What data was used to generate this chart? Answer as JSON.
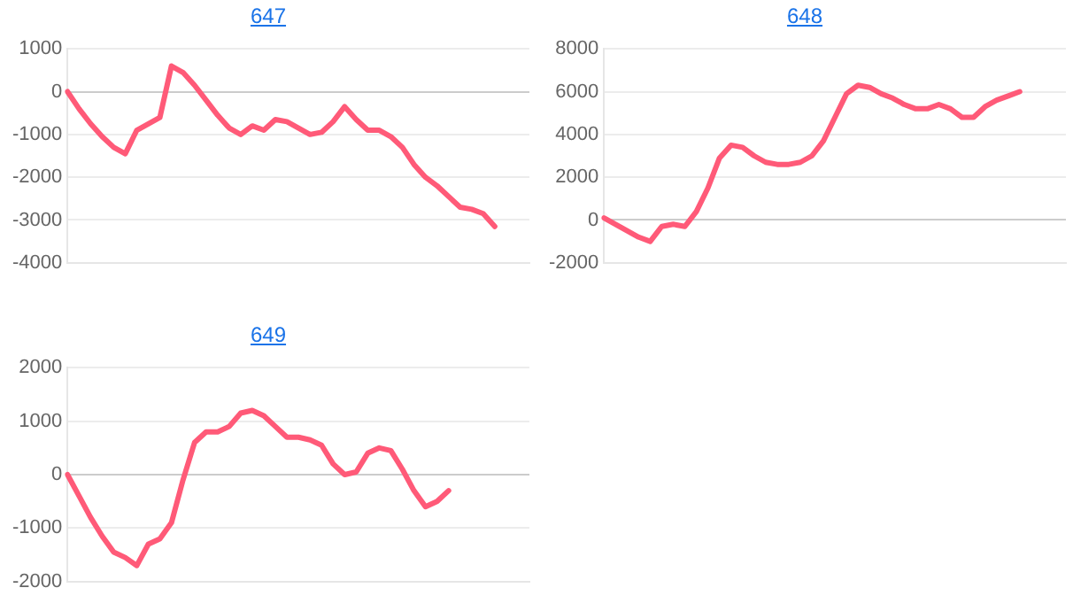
{
  "chart_data": [
    {
      "type": "line",
      "title": "647",
      "categories": [
        null,
        null,
        null,
        null,
        null,
        null,
        null,
        null,
        null,
        null,
        null,
        null,
        null,
        null,
        null,
        null,
        null,
        null,
        null,
        null,
        null,
        null,
        null,
        null,
        null,
        null,
        null,
        null,
        null,
        null,
        null,
        null,
        null,
        null,
        null,
        null,
        null,
        null,
        null,
        null,
        null
      ],
      "series": [
        {
          "color": "#ff5a78",
          "values": [
            0,
            -400,
            -750,
            -1050,
            -1300,
            -1450,
            -900,
            -750,
            -600,
            600,
            450,
            150,
            -200,
            -550,
            -850,
            -1000,
            -800,
            -900,
            -650,
            -700,
            -850,
            -1000,
            -950,
            -700,
            -350,
            -650,
            -900,
            -900,
            -1050,
            -1300,
            -1700,
            -2000,
            -2200,
            -2450,
            -2700,
            -2750,
            -2850,
            -3150,
            null,
            null,
            null
          ]
        }
      ],
      "ylim": [
        -4000,
        1000
      ],
      "yticks": [
        -4000,
        -3000,
        -2000,
        -1000,
        0,
        1000
      ],
      "grid": "y",
      "tick_labels": "y",
      "marker": "none",
      "line_style": "solid"
    },
    {
      "type": "line",
      "title": "648",
      "categories": [
        null,
        null,
        null,
        null,
        null,
        null,
        null,
        null,
        null,
        null,
        null,
        null,
        null,
        null,
        null,
        null,
        null,
        null,
        null,
        null,
        null,
        null,
        null,
        null,
        null,
        null,
        null,
        null,
        null,
        null,
        null,
        null,
        null,
        null,
        null,
        null,
        null,
        null,
        null,
        null,
        null
      ],
      "series": [
        {
          "color": "#ff5a78",
          "values": [
            100,
            -200,
            -500,
            -800,
            -1000,
            -300,
            -200,
            -300,
            400,
            1500,
            2900,
            3500,
            3400,
            3000,
            2700,
            2600,
            2600,
            2700,
            3000,
            3700,
            4800,
            5900,
            6300,
            6200,
            5900,
            5700,
            5400,
            5200,
            5200,
            5400,
            5200,
            4800,
            4800,
            5300,
            5600,
            5800,
            6000,
            null,
            null,
            null,
            null
          ]
        }
      ],
      "ylim": [
        -2000,
        8000
      ],
      "yticks": [
        -2000,
        0,
        2000,
        4000,
        6000,
        8000
      ],
      "grid": "y",
      "tick_labels": "y",
      "marker": "none",
      "line_style": "solid"
    },
    {
      "type": "line",
      "title": "649",
      "categories": [
        null,
        null,
        null,
        null,
        null,
        null,
        null,
        null,
        null,
        null,
        null,
        null,
        null,
        null,
        null,
        null,
        null,
        null,
        null,
        null,
        null,
        null,
        null,
        null,
        null,
        null,
        null,
        null,
        null,
        null,
        null,
        null,
        null,
        null,
        null,
        null,
        null,
        null,
        null,
        null,
        null
      ],
      "series": [
        {
          "color": "#ff5a78",
          "values": [
            0,
            -400,
            -800,
            -1150,
            -1450,
            -1550,
            -1700,
            -1300,
            -1200,
            -900,
            -100,
            600,
            800,
            800,
            900,
            1150,
            1200,
            1100,
            900,
            700,
            700,
            650,
            550,
            200,
            0,
            50,
            400,
            500,
            450,
            100,
            -300,
            -600,
            -500,
            -300,
            null,
            null,
            null,
            null,
            null,
            null,
            null
          ]
        }
      ],
      "ylim": [
        -2000,
        2000
      ],
      "yticks": [
        -2000,
        -1000,
        0,
        1000,
        2000
      ],
      "grid": "y",
      "tick_labels": "y",
      "marker": "none",
      "line_style": "solid"
    }
  ]
}
